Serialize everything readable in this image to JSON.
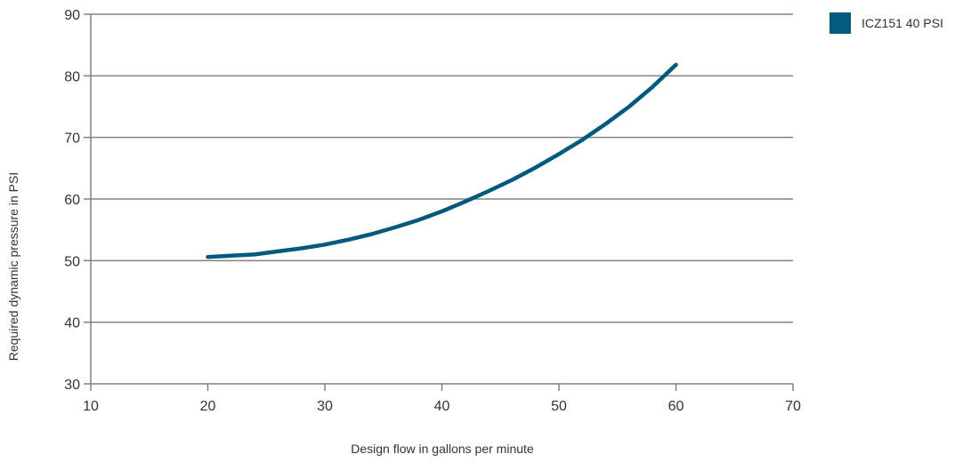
{
  "chart_data": {
    "type": "line",
    "xlabel": "Design flow in gallons per minute",
    "ylabel": "Required dynamic pressure in PSI",
    "xlim": [
      10,
      70
    ],
    "ylim": [
      30,
      90
    ],
    "x_ticks": [
      "10",
      "20",
      "30",
      "40",
      "50",
      "60",
      "70"
    ],
    "y_ticks": [
      "30",
      "40",
      "50",
      "60",
      "70",
      "80",
      "90"
    ],
    "grid": "horizontal",
    "legend_position": "top-right",
    "series": [
      {
        "name": "ICZ151 40 PSI",
        "color": "#005a7d",
        "x": [
          20,
          22,
          24,
          26,
          28,
          30,
          32,
          34,
          36,
          38,
          40,
          42,
          44,
          46,
          48,
          50,
          52,
          54,
          56,
          58,
          60
        ],
        "y": [
          50.6,
          50.8,
          51.0,
          51.5,
          52.0,
          52.6,
          53.4,
          54.3,
          55.4,
          56.6,
          58.0,
          59.6,
          61.3,
          63.1,
          65.1,
          67.3,
          69.6,
          72.2,
          75.0,
          78.2,
          81.8
        ]
      }
    ]
  }
}
